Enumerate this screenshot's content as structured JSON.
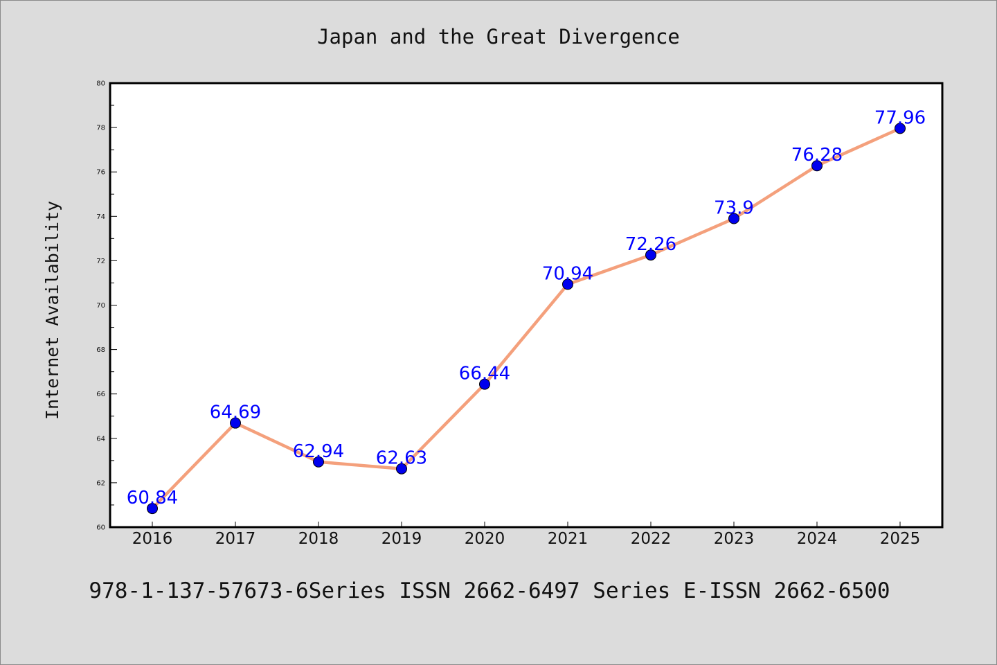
{
  "chart_data": {
    "type": "line",
    "title": "Japan and the Great Divergence",
    "xlabel": "",
    "ylabel": "Internet Availability",
    "categories": [
      "2016",
      "2017",
      "2018",
      "2019",
      "2020",
      "2021",
      "2022",
      "2023",
      "2024",
      "2025"
    ],
    "values": [
      60.84,
      64.69,
      62.94,
      62.63,
      66.44,
      70.94,
      72.26,
      73.9,
      76.28,
      77.96
    ],
    "data_labels": [
      "60.84",
      "64.69",
      "62.94",
      "62.63",
      "66.44",
      "70.94",
      "72.26",
      "73.9",
      "76.28",
      "77.96"
    ],
    "ylim": [
      60,
      80
    ],
    "yticks": [
      "60",
      "62",
      "64",
      "66",
      "68",
      "70",
      "72",
      "74",
      "76",
      "78",
      "80"
    ],
    "grid": false,
    "line_color": "#f4a07c",
    "marker_color": "#0000ee",
    "label_color": "#0000ff"
  },
  "footer": "978-1-137-57673-6Series ISSN 2662-6497 Series E-ISSN 2662-6500"
}
